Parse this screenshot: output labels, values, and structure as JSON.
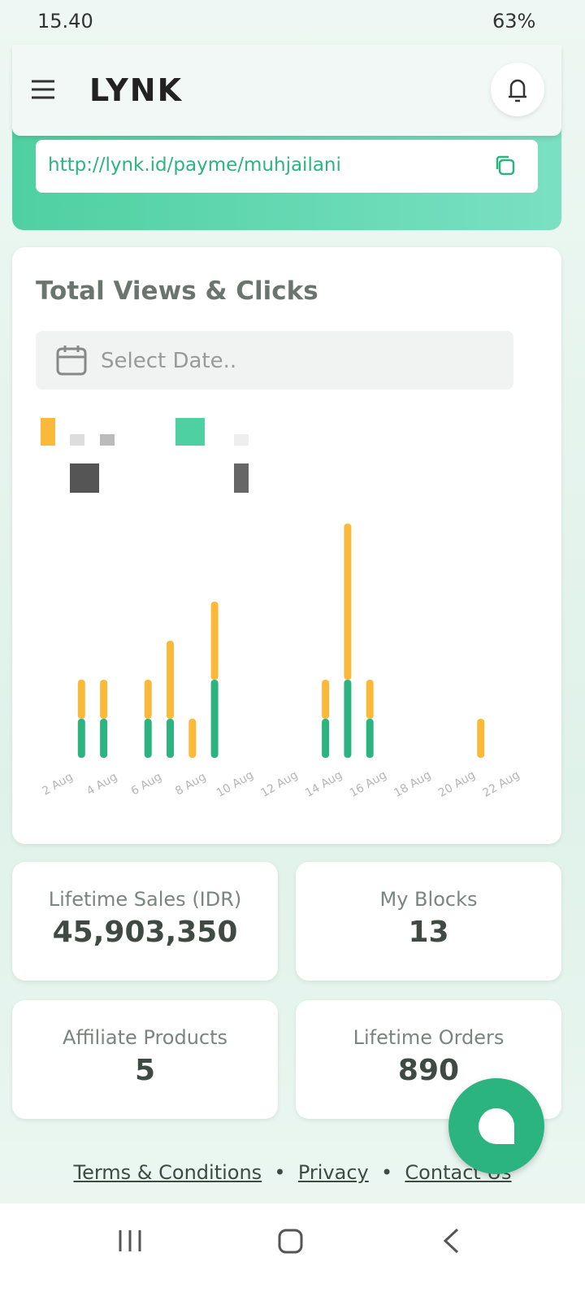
{
  "status_bar": {
    "time": "15.40",
    "battery": "63%"
  },
  "header": {
    "logo": "LYNK"
  },
  "link": {
    "url": "http://lynk.id/payme/muhjailani"
  },
  "chart_card": {
    "title": "Total Views & Clicks",
    "date_placeholder": "Select Date.."
  },
  "chart_data": {
    "type": "bar",
    "stacked": true,
    "categories": [
      "2 Aug",
      null,
      "4 Aug",
      null,
      "6 Aug",
      null,
      "8 Aug",
      null,
      "10 Aug",
      null,
      "12 Aug",
      null,
      "14 Aug",
      null,
      "16 Aug",
      null,
      "18 Aug",
      null,
      "20 Aug",
      null,
      "22 Aug"
    ],
    "series": [
      {
        "color": "#2bb47f",
        "values": [
          0,
          1,
          1,
          0,
          1,
          1,
          0,
          2,
          0,
          0,
          0,
          0,
          1,
          2,
          1,
          0,
          0,
          0,
          0,
          0,
          0
        ]
      },
      {
        "color": "#fbb93a",
        "values": [
          0,
          1,
          1,
          0,
          1,
          2,
          1,
          2,
          0,
          0,
          0,
          0,
          1,
          4,
          1,
          0,
          0,
          0,
          0,
          1,
          0
        ]
      }
    ],
    "ylim": [
      0,
      6
    ]
  },
  "stats": [
    {
      "label": "Lifetime Sales (IDR)",
      "value": "45,903,350"
    },
    {
      "label": "My Blocks",
      "value": 13
    },
    {
      "label": "Affiliate Products",
      "value": 5
    },
    {
      "label": "Lifetime Orders",
      "value": 890
    }
  ],
  "footer": {
    "links": [
      "Terms & Conditions",
      "Privacy",
      "Contact Us"
    ]
  }
}
